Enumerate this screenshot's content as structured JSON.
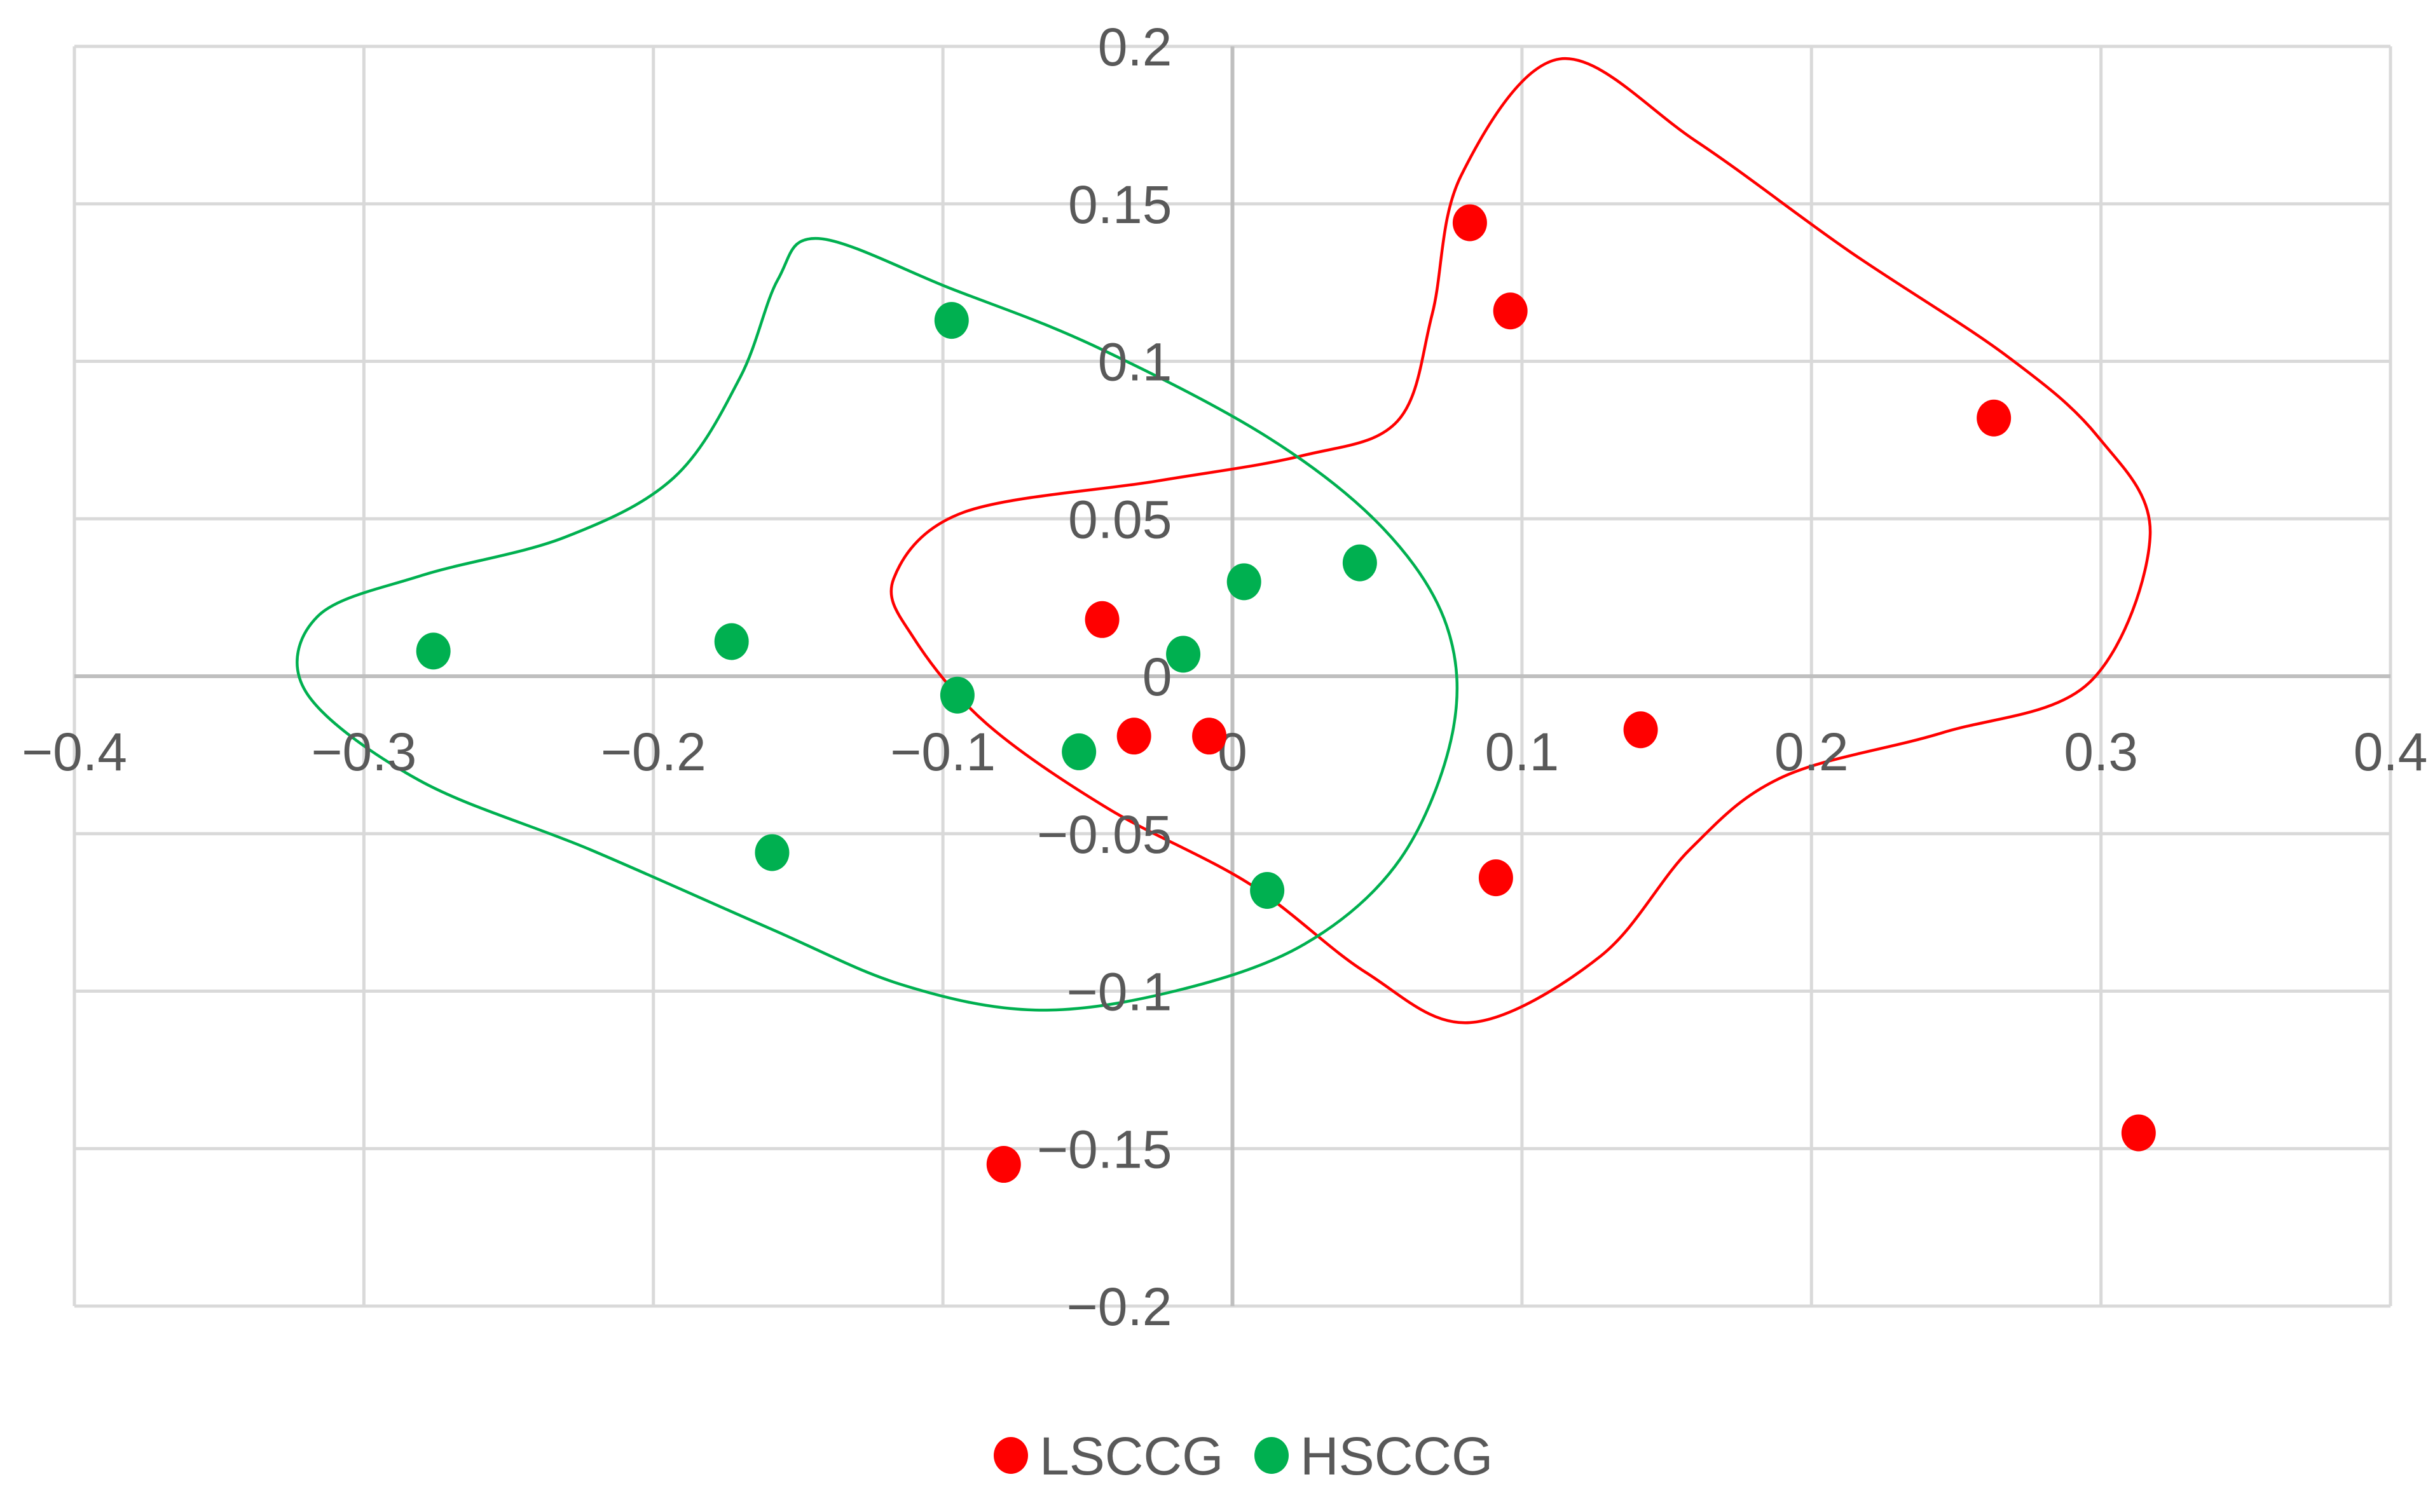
{
  "chart_data": {
    "type": "scatter",
    "title": "",
    "xlabel": "",
    "ylabel": "",
    "xlim": [
      -0.4,
      0.4
    ],
    "ylim": [
      -0.2,
      0.2
    ],
    "x_ticks": [
      -0.4,
      -0.3,
      -0.2,
      -0.1,
      0,
      0.1,
      0.2,
      0.3,
      0.4
    ],
    "y_ticks": [
      -0.2,
      -0.15,
      -0.1,
      -0.05,
      0,
      0.05,
      0.1,
      0.15,
      0.2
    ],
    "x_tick_labels": [
      "−0.4",
      "−0.3",
      "−0.2",
      "−0.1",
      "0",
      "0.1",
      "0.2",
      "0.3",
      "0.4"
    ],
    "y_tick_labels": [
      "−0.2",
      "−0.15",
      "−0.1",
      "−0.05",
      "0",
      "0.05",
      "0.1",
      "0.15",
      "0.2"
    ],
    "grid": true,
    "legend_position": "bottom",
    "series": [
      {
        "name": "LSCCG",
        "color": "#ff0000",
        "points": [
          [
            0.082,
            0.144
          ],
          [
            0.096,
            0.116
          ],
          [
            0.263,
            0.082
          ],
          [
            -0.045,
            0.018
          ],
          [
            -0.034,
            -0.019
          ],
          [
            -0.008,
            -0.019
          ],
          [
            0.141,
            -0.017
          ],
          [
            0.091,
            -0.064
          ],
          [
            -0.079,
            -0.155
          ],
          [
            0.313,
            -0.145
          ]
        ],
        "enclosure": [
          [
            0.113,
            0.196
          ],
          [
            0.16,
            0.17
          ],
          [
            0.213,
            0.135
          ],
          [
            0.267,
            0.102
          ],
          [
            0.299,
            0.076
          ],
          [
            0.317,
            0.045
          ],
          [
            0.296,
            -0.002
          ],
          [
            0.245,
            -0.018
          ],
          [
            0.19,
            -0.032
          ],
          [
            0.158,
            -0.055
          ],
          [
            0.127,
            -0.089
          ],
          [
            0.082,
            -0.11
          ],
          [
            0.046,
            -0.094
          ],
          [
            0.006,
            -0.066
          ],
          [
            -0.043,
            -0.042
          ],
          [
            -0.085,
            -0.015
          ],
          [
            -0.11,
            0.012
          ],
          [
            -0.117,
            0.031
          ],
          [
            -0.093,
            0.052
          ],
          [
            -0.026,
            0.062
          ],
          [
            0.024,
            0.07
          ],
          [
            0.057,
            0.081
          ],
          [
            0.069,
            0.115
          ],
          [
            0.079,
            0.159
          ]
        ]
      },
      {
        "name": "HSCCG",
        "color": "#00b050",
        "points": [
          [
            -0.097,
            0.113
          ],
          [
            -0.276,
            0.008
          ],
          [
            -0.173,
            0.011
          ],
          [
            -0.095,
            -0.006
          ],
          [
            0.004,
            0.03
          ],
          [
            0.044,
            0.036
          ],
          [
            -0.017,
            0.007
          ],
          [
            -0.053,
            -0.024
          ],
          [
            -0.159,
            -0.056
          ],
          [
            0.012,
            -0.068
          ]
        ],
        "enclosure": [
          [
            -0.143,
            0.139
          ],
          [
            -0.097,
            0.123
          ],
          [
            -0.048,
            0.105
          ],
          [
            0.012,
            0.076
          ],
          [
            0.052,
            0.047
          ],
          [
            0.074,
            0.016
          ],
          [
            0.076,
            -0.018
          ],
          [
            0.058,
            -0.058
          ],
          [
            0.025,
            -0.085
          ],
          [
            -0.02,
            -0.1
          ],
          [
            -0.068,
            -0.106
          ],
          [
            -0.114,
            -0.098
          ],
          [
            -0.16,
            -0.08
          ],
          [
            -0.222,
            -0.055
          ],
          [
            -0.281,
            -0.033
          ],
          [
            -0.32,
            -0.005
          ],
          [
            -0.316,
            0.019
          ],
          [
            -0.28,
            0.032
          ],
          [
            -0.231,
            0.044
          ],
          [
            -0.193,
            0.063
          ],
          [
            -0.17,
            0.095
          ],
          [
            -0.157,
            0.126
          ]
        ]
      }
    ]
  }
}
